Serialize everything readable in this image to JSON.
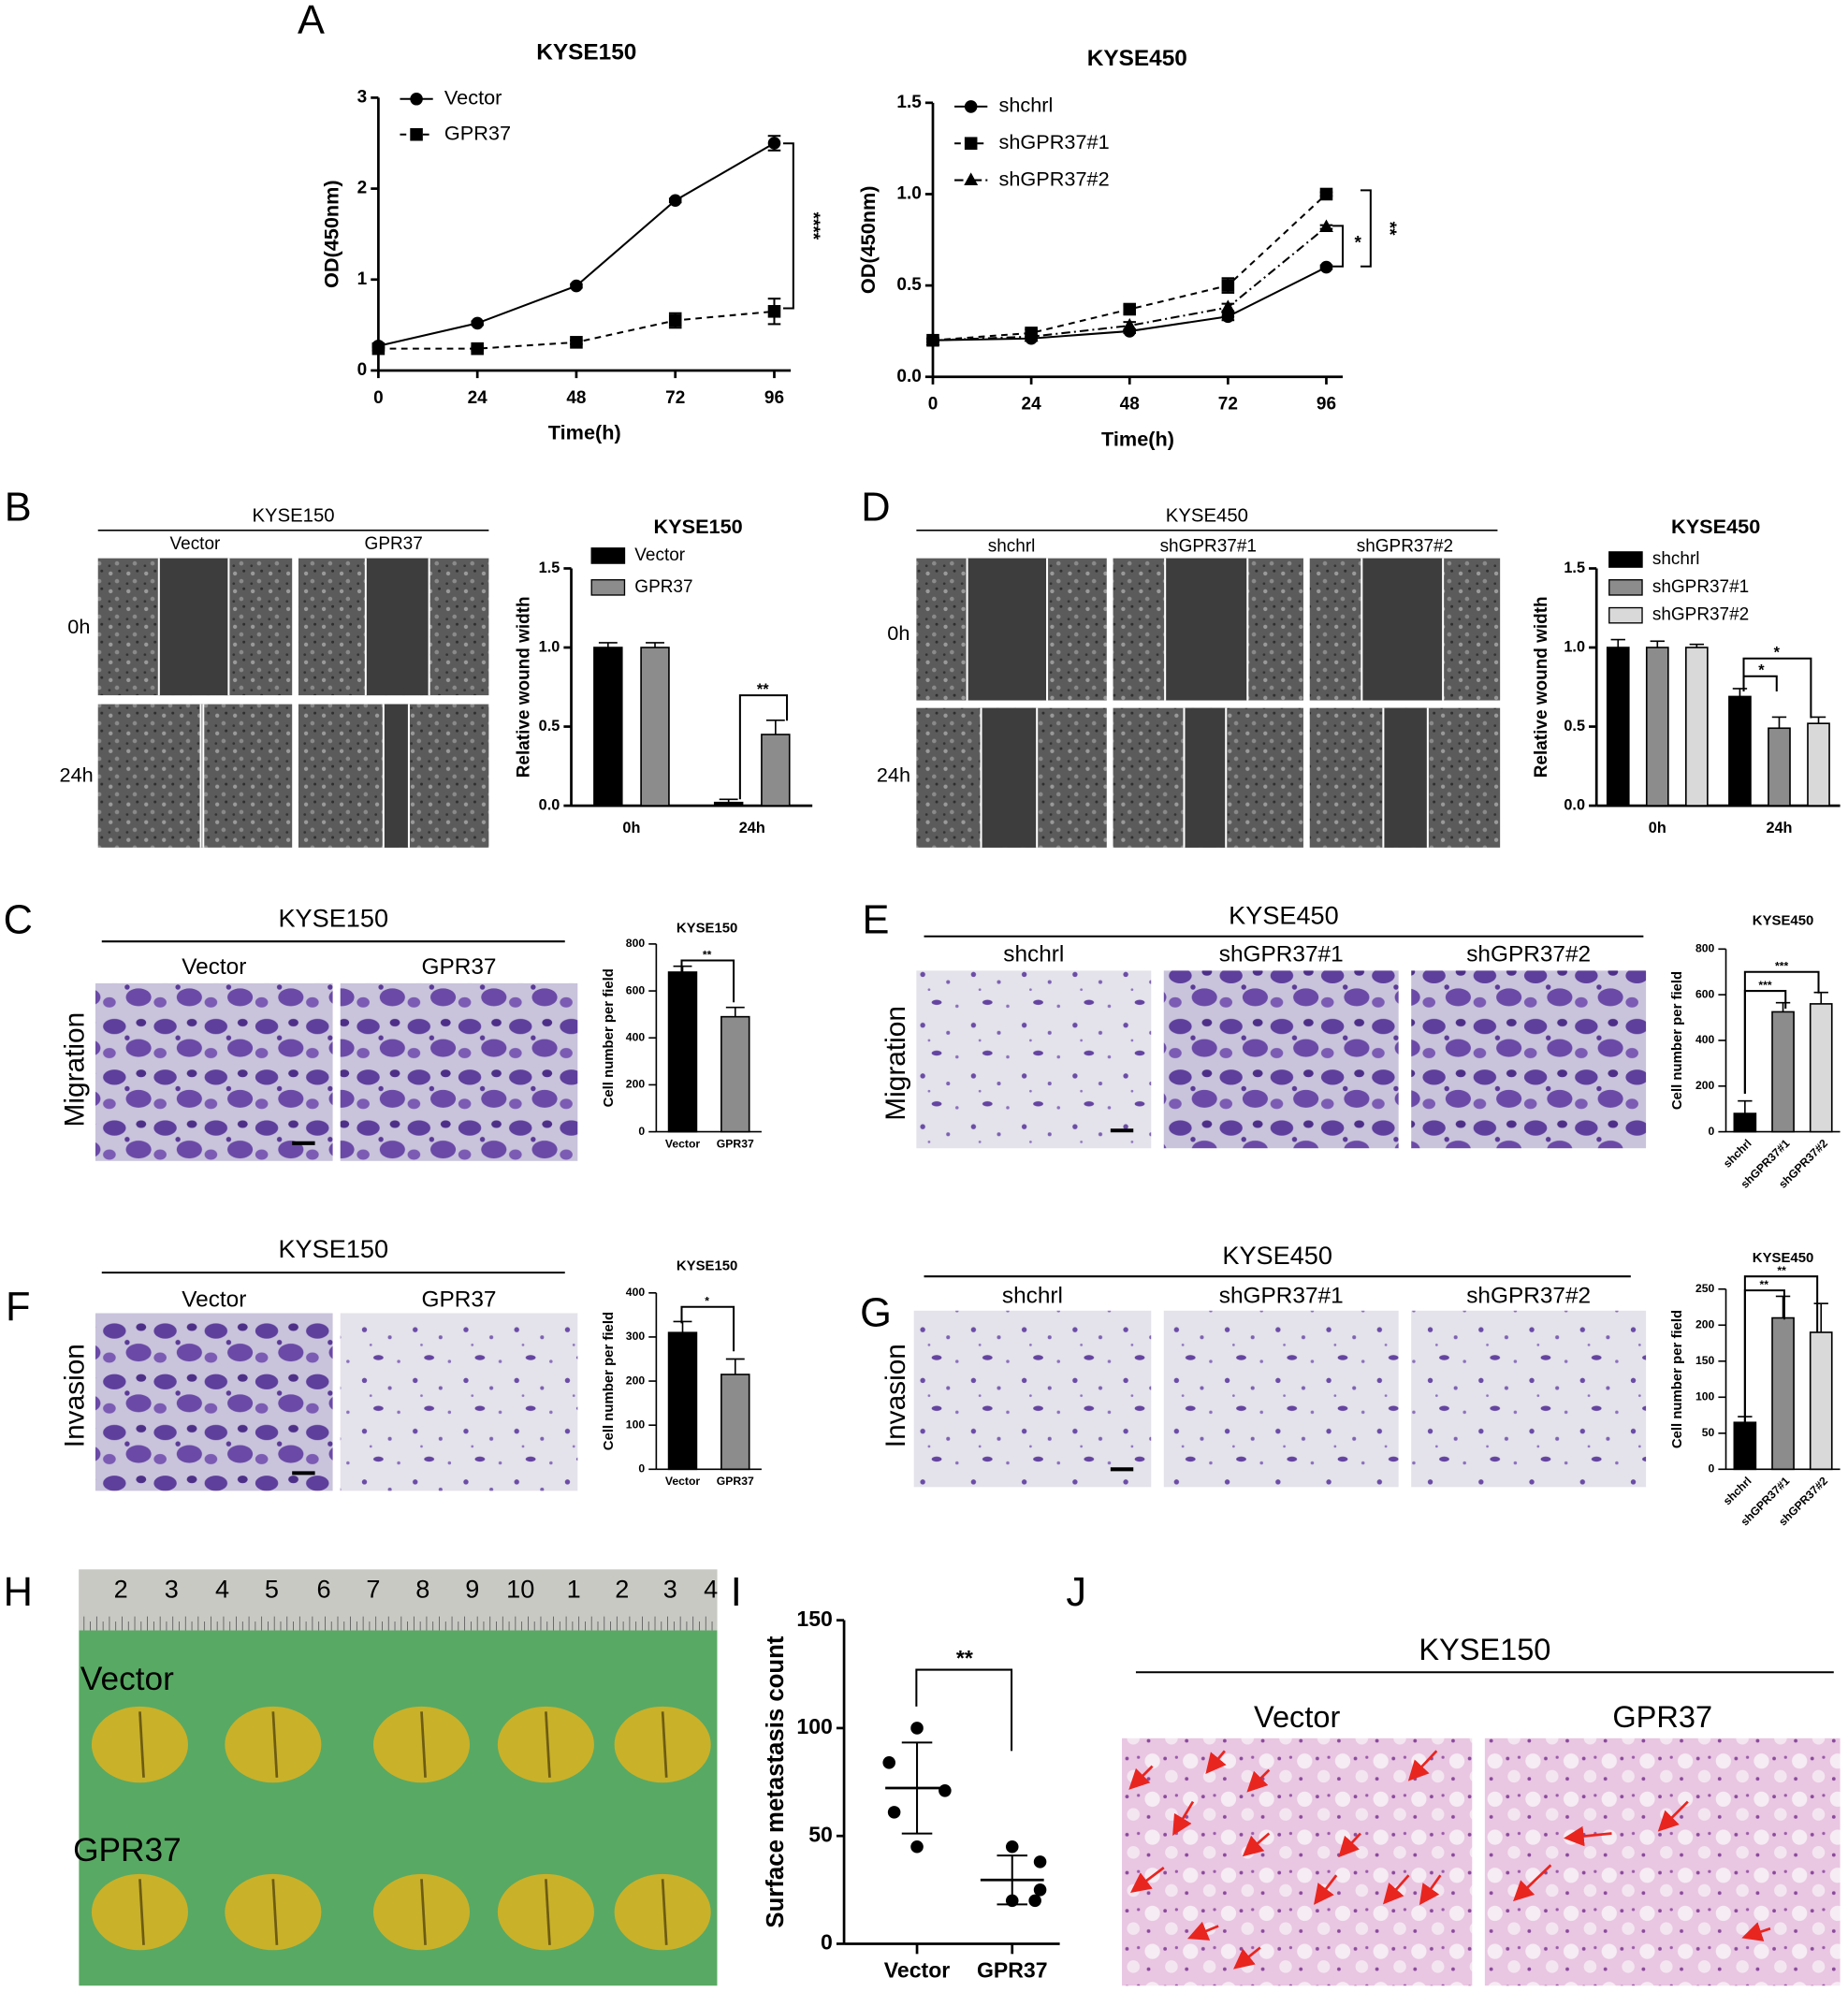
{
  "panels": {
    "letters": [
      "A",
      "B",
      "C",
      "D",
      "E",
      "F",
      "G",
      "H",
      "I",
      "J"
    ],
    "B": {
      "title": "KYSE150",
      "columns": [
        "Vector",
        "GPR37"
      ],
      "rows": [
        "0h",
        "24h"
      ]
    },
    "D": {
      "title": "KYSE450",
      "columns": [
        "shchrl",
        "shGPR37#1",
        "shGPR37#2"
      ],
      "rows": [
        "0h",
        "24h"
      ]
    },
    "C": {
      "title": "KYSE150",
      "columns": [
        "Vector",
        "GPR37"
      ],
      "row": "Migration"
    },
    "E": {
      "title": "KYSE450",
      "columns": [
        "shchrl",
        "shGPR37#1",
        "shGPR37#2"
      ],
      "row": "Migration"
    },
    "F": {
      "title": "KYSE150",
      "columns": [
        "Vector",
        "GPR37"
      ],
      "row": "Invasion"
    },
    "G": {
      "title": "KYSE450",
      "columns": [
        "shchrl",
        "shGPR37#1",
        "shGPR37#2"
      ],
      "row": "Invasion"
    },
    "H": {
      "ruler": [
        "2",
        "3",
        "4",
        "5",
        "6",
        "7",
        "8",
        "9",
        "10",
        "1",
        "2",
        "3",
        "4"
      ],
      "rows": [
        "Vector",
        "GPR37"
      ]
    },
    "J": {
      "title": "KYSE150",
      "columns": [
        "Vector",
        "GPR37"
      ]
    }
  },
  "chart_data": [
    {
      "type": "line",
      "title": "KYSE150",
      "x": [
        0,
        24,
        48,
        72,
        96
      ],
      "series": [
        {
          "name": "Vector",
          "color": "#000000",
          "marker": "circle",
          "dash": "solid",
          "values": [
            0.27,
            0.52,
            0.93,
            1.87,
            2.5
          ],
          "errors": [
            0.02,
            0.02,
            0.02,
            0.02,
            0.08
          ]
        },
        {
          "name": "GPR37",
          "color": "#000000",
          "marker": "square",
          "dash": "dashed",
          "values": [
            0.24,
            0.24,
            0.31,
            0.55,
            0.65
          ],
          "errors": [
            0.02,
            0.02,
            0.02,
            0.08,
            0.14
          ]
        }
      ],
      "xlim": [
        0,
        100
      ],
      "xticks": [
        0,
        24,
        48,
        72,
        96
      ],
      "ylim": [
        0,
        3
      ],
      "yticks": [
        0,
        1,
        2,
        3
      ],
      "xlabel": "Time(h)",
      "ylabel": "OD(450nm)",
      "annotations": [
        "****"
      ],
      "legend": "upper left"
    },
    {
      "type": "line",
      "title": "KYSE450",
      "x": [
        0,
        24,
        48,
        72,
        96
      ],
      "series": [
        {
          "name": "shchrl",
          "color": "#000000",
          "marker": "circle",
          "dash": "solid",
          "values": [
            0.2,
            0.21,
            0.25,
            0.33,
            0.6
          ],
          "errors": [
            0.01,
            0.01,
            0.01,
            0.02,
            0.01
          ]
        },
        {
          "name": "shGPR37#1",
          "color": "#000000",
          "marker": "square",
          "dash": "dashed",
          "values": [
            0.2,
            0.24,
            0.37,
            0.5,
            1.0
          ],
          "errors": [
            0.01,
            0.02,
            0.02,
            0.04,
            0.01
          ]
        },
        {
          "name": "shGPR37#2",
          "color": "#000000",
          "marker": "triangle",
          "dash": "dashdot",
          "values": [
            0.2,
            0.22,
            0.28,
            0.38,
            0.82
          ],
          "errors": [
            0.01,
            0.01,
            0.02,
            0.02,
            0.01
          ]
        }
      ],
      "xlim": [
        0,
        100
      ],
      "xticks": [
        0,
        24,
        48,
        72,
        96
      ],
      "ylim": [
        0,
        1.5
      ],
      "yticks": [
        {
          "value": 0,
          "label": "0.0"
        },
        {
          "value": 0.5,
          "label": "0.5"
        },
        {
          "value": 1,
          "label": "1.0"
        },
        {
          "value": 1.5,
          "label": "1.5"
        }
      ],
      "xlabel": "Time(h)",
      "ylabel": "OD(450nm)",
      "annotations": [
        "*",
        "**"
      ],
      "legend": "upper left"
    },
    {
      "type": "bar",
      "title": "KYSE150",
      "categories": [
        "0h",
        "24h"
      ],
      "series": [
        {
          "name": "Vector",
          "color": "#000000",
          "values": [
            1.0,
            0.02
          ],
          "errors": [
            0.03,
            0.02
          ]
        },
        {
          "name": "GPR37",
          "color": "#8c8c8c",
          "values": [
            1.0,
            0.45
          ],
          "errors": [
            0.03,
            0.09
          ]
        }
      ],
      "ylim": [
        0,
        1.5
      ],
      "yticks": [
        {
          "value": 0,
          "label": "0.0"
        },
        {
          "value": 0.5,
          "label": "0.5"
        },
        {
          "value": 1,
          "label": "1.0"
        },
        {
          "value": 1.5,
          "label": "1.5"
        }
      ],
      "ylabel": "Relative wound width",
      "annotations": [
        "**"
      ],
      "legend": "upper left"
    },
    {
      "type": "bar",
      "title": "KYSE450",
      "categories": [
        "0h",
        "24h"
      ],
      "series": [
        {
          "name": "shchrl",
          "color": "#000000",
          "values": [
            1.0,
            0.69
          ],
          "errors": [
            0.05,
            0.05
          ]
        },
        {
          "name": "shGPR37#1",
          "color": "#8c8c8c",
          "values": [
            1.0,
            0.49
          ],
          "errors": [
            0.04,
            0.07
          ]
        },
        {
          "name": "shGPR37#2",
          "color": "#d9d9d9",
          "values": [
            1.0,
            0.52
          ],
          "errors": [
            0.02,
            0.04
          ]
        }
      ],
      "ylim": [
        0,
        1.5
      ],
      "yticks": [
        {
          "value": 0,
          "label": "0.0"
        },
        {
          "value": 0.5,
          "label": "0.5"
        },
        {
          "value": 1,
          "label": "1.0"
        },
        {
          "value": 1.5,
          "label": "1.5"
        }
      ],
      "ylabel": "Relative wound width",
      "annotations": [
        "*",
        "*"
      ],
      "legend": "upper left"
    },
    {
      "type": "bar",
      "title": "KYSE150",
      "categories": [
        "Vector",
        "GPR37"
      ],
      "values": [
        680,
        490
      ],
      "errors": [
        25,
        40
      ],
      "colors": [
        "#000000",
        "#8c8c8c"
      ],
      "ylim": [
        0,
        800
      ],
      "yticks": [
        0,
        200,
        400,
        600,
        800
      ],
      "ylabel": "Cell number per field",
      "annotations": [
        "**"
      ]
    },
    {
      "type": "bar",
      "title": "KYSE450",
      "categories": [
        "shchrl",
        "shGPR37#1",
        "shGPR37#2"
      ],
      "values": [
        80,
        525,
        560
      ],
      "errors": [
        55,
        40,
        50
      ],
      "colors": [
        "#000000",
        "#8c8c8c",
        "#d9d9d9"
      ],
      "ylim": [
        0,
        800
      ],
      "yticks": [
        0,
        200,
        400,
        600,
        800
      ],
      "ylabel": "Cell number per field",
      "annotations": [
        "***",
        "***"
      ]
    },
    {
      "type": "bar",
      "title": "KYSE150",
      "categories": [
        "Vector",
        "GPR37"
      ],
      "values": [
        310,
        215
      ],
      "errors": [
        25,
        35
      ],
      "colors": [
        "#000000",
        "#8c8c8c"
      ],
      "ylim": [
        0,
        400
      ],
      "yticks": [
        0,
        100,
        200,
        300,
        400
      ],
      "ylabel": "Cell number per field",
      "annotations": [
        "*"
      ]
    },
    {
      "type": "bar",
      "title": "KYSE450",
      "categories": [
        "shchrl",
        "shGPR37#1",
        "shGPR37#2"
      ],
      "values": [
        65,
        210,
        190
      ],
      "errors": [
        8,
        30,
        40
      ],
      "colors": [
        "#000000",
        "#8c8c8c",
        "#d9d9d9"
      ],
      "ylim": [
        0,
        250
      ],
      "yticks": [
        0,
        50,
        100,
        150,
        200,
        250
      ],
      "ylabel": "Cell number per field",
      "annotations": [
        "**",
        "**"
      ]
    },
    {
      "type": "strip",
      "categories": [
        "Vector",
        "GPR37"
      ],
      "values": [
        [
          100,
          84,
          71,
          61,
          45
        ],
        [
          45,
          38,
          25,
          20,
          20
        ]
      ],
      "color": "#000000",
      "ylim": [
        0,
        150
      ],
      "yticks": [
        0,
        50,
        100,
        150
      ],
      "ylabel": "Surface metastasis count",
      "annotations": [
        "**"
      ]
    }
  ]
}
